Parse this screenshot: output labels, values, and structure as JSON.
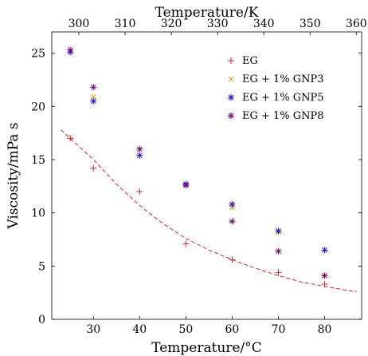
{
  "chart_data": {
    "type": "scatter",
    "xlabel": "Temperature/°C",
    "ylabel": "Viscosity/mPa s",
    "x2label": "Temperature/K",
    "xlim": [
      21,
      88
    ],
    "ylim": [
      0,
      27
    ],
    "x2lim": [
      294.15,
      361.15
    ],
    "x_ticks": [
      30,
      40,
      50,
      60,
      70,
      80
    ],
    "y_ticks": [
      0,
      5,
      10,
      15,
      20,
      25
    ],
    "x2_ticks": [
      300,
      310,
      320,
      330,
      340,
      350,
      360
    ],
    "grid": false,
    "legend_position": "top-right",
    "series": [
      {
        "name": "EG",
        "marker": "plus",
        "color": "#e41a1c",
        "x": [
          25,
          30,
          40,
          50,
          60,
          70,
          80
        ],
        "y": [
          17.0,
          14.2,
          12.0,
          7.1,
          5.6,
          4.4,
          3.3
        ]
      },
      {
        "name": "EG + 1% GNP3",
        "marker": "x",
        "color": "#ff8c00",
        "x": [
          25,
          30,
          40,
          50,
          60,
          70,
          80
        ],
        "y": [
          25.3,
          20.9,
          16.0,
          12.6,
          10.5,
          8.2,
          4.1
        ]
      },
      {
        "name": "EG + 1% GNP5",
        "marker": "asterisk",
        "color": "#1515e8",
        "x": [
          25,
          30,
          40,
          50,
          60,
          70,
          80
        ],
        "y": [
          25.1,
          20.5,
          15.4,
          12.7,
          10.8,
          8.3,
          6.5
        ]
      },
      {
        "name": "EG + 1% GNP8",
        "marker": "asterisk",
        "color": "#800080",
        "x": [
          25,
          30,
          40,
          50,
          60,
          70,
          80
        ],
        "y": [
          25.3,
          21.8,
          16.0,
          12.6,
          9.2,
          6.4,
          4.1
        ]
      }
    ],
    "fit_curve": {
      "style": "dashed",
      "color": "#e41a1c",
      "x": [
        23,
        25,
        30,
        35,
        40,
        45,
        50,
        55,
        60,
        65,
        70,
        75,
        80,
        85,
        87
      ],
      "y": [
        17.8,
        17.0,
        15.0,
        12.7,
        10.7,
        9.0,
        7.6,
        6.5,
        5.6,
        4.8,
        4.1,
        3.5,
        3.1,
        2.7,
        2.6
      ]
    }
  }
}
